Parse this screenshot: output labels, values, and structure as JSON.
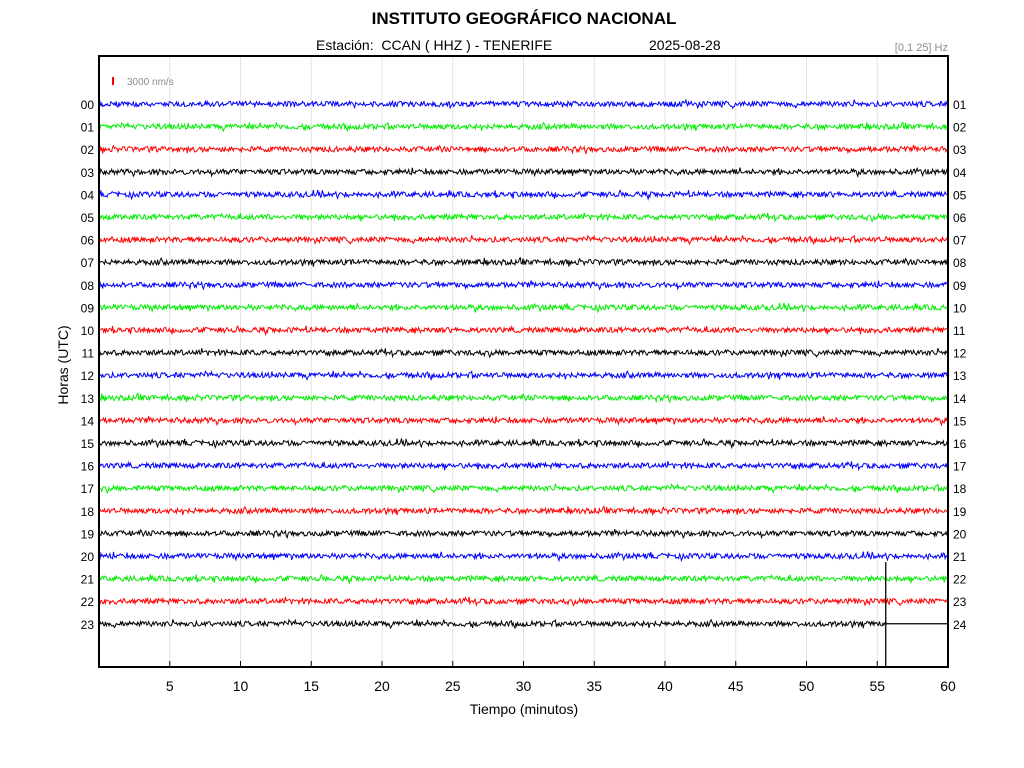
{
  "header": {
    "title": "INSTITUTO GEOGRÁFICO NACIONAL",
    "station": "Estación:  CCAN ( HHZ ) - TENERIFE",
    "date": "2025-08-28",
    "filter": "[0.1 25] Hz"
  },
  "chart_data": {
    "type": "line",
    "title": "INSTITUTO GEOGRÁFICO NACIONAL",
    "xlabel": "Tiempo (minutos)",
    "ylabel": "Horas (UTC)",
    "xlim": [
      0,
      60
    ],
    "x_ticks": [
      5,
      10,
      15,
      20,
      25,
      30,
      35,
      40,
      45,
      50,
      55,
      60
    ],
    "left_hour_labels": [
      "00",
      "01",
      "02",
      "03",
      "04",
      "05",
      "06",
      "07",
      "08",
      "09",
      "10",
      "11",
      "12",
      "13",
      "14",
      "15",
      "16",
      "17",
      "18",
      "19",
      "20",
      "21",
      "22",
      "23"
    ],
    "right_hour_labels": [
      "01",
      "02",
      "03",
      "04",
      "05",
      "06",
      "07",
      "08",
      "09",
      "10",
      "11",
      "12",
      "13",
      "14",
      "15",
      "16",
      "17",
      "18",
      "19",
      "20",
      "21",
      "22",
      "23",
      "24"
    ],
    "trace_colors": [
      "#0000ff",
      "#00ee00",
      "#ff0000",
      "#000000"
    ],
    "scale_label": "3000 nm/s",
    "scale_color": "#ff0000",
    "grid": true,
    "event": {
      "hour_index": 23,
      "minute": 55.6
    }
  }
}
